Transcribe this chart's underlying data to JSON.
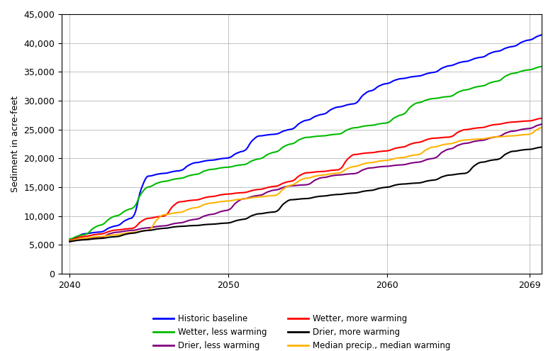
{
  "title": "",
  "xlabel": "",
  "ylabel": "Sediment in acre-feet",
  "xlim": [
    2039.5,
    2069.75
  ],
  "ylim": [
    0,
    45000
  ],
  "yticks": [
    0,
    5000,
    10000,
    15000,
    20000,
    25000,
    30000,
    35000,
    40000,
    45000
  ],
  "xticks": [
    2040,
    2050,
    2060,
    2069
  ],
  "colors": {
    "Historic baseline": "#0000FF",
    "Wetter, less warming": "#00BB00",
    "Wetter, more warming": "#FF0000",
    "Drier, less warming": "#800080",
    "Median precip., median warming": "#FFB300",
    "Drier, more warming": "#000000"
  },
  "legend_left": [
    "Historic baseline",
    "Wetter, less warming",
    "Drier, less warming"
  ],
  "legend_right": [
    "Wetter, more warming",
    "Drier, more warming",
    "Median precip., median warming"
  ],
  "figsize": [
    7.8,
    4.95
  ],
  "dpi": 100,
  "linewidth": 1.5
}
